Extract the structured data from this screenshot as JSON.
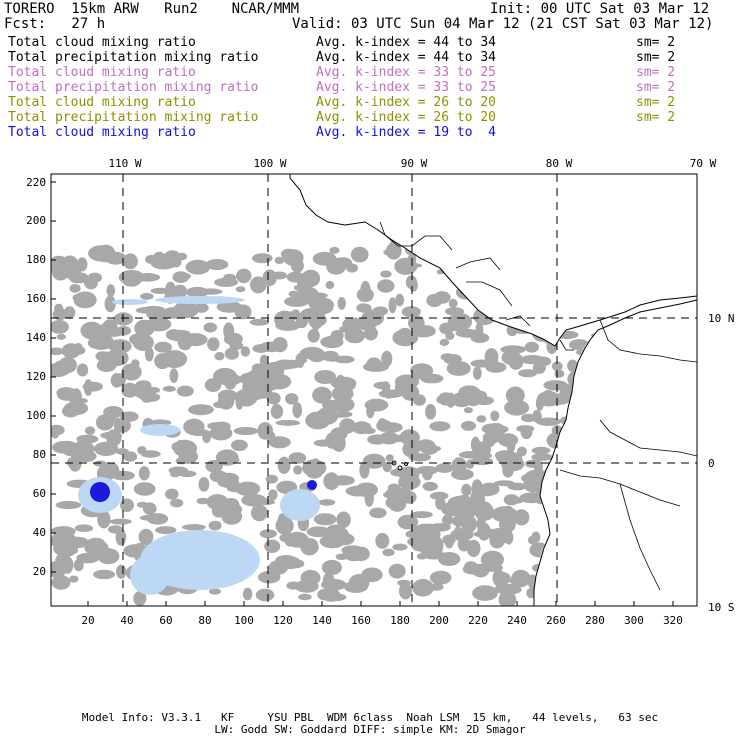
{
  "header": {
    "model": "TORERO  15km ARW   Run2    NCAR/MMM",
    "init": "Init: 00 UTC Sat 03 Mar 12",
    "fcst": "Fcst:   27 h",
    "valid": "Valid: 03 UTC Sun 04 Mar 12 (21 CST Sat 03 Mar 12)"
  },
  "legend": [
    {
      "field": "Total cloud mixing ratio",
      "kindex": "Avg. k-index = 44 to 34",
      "sm": "sm= 2",
      "color": "#000000"
    },
    {
      "field": "Total precipitation mixing ratio",
      "kindex": "Avg. k-index = 44 to 34",
      "sm": "sm= 2",
      "color": "#000000"
    },
    {
      "field": "Total cloud mixing ratio",
      "kindex": "Avg. k-index = 33 to 25",
      "sm": "sm= 2",
      "color": "#c070c0"
    },
    {
      "field": "Total precipitation mixing ratio",
      "kindex": "Avg. k-index = 33 to 25",
      "sm": "sm= 2",
      "color": "#c070c0"
    },
    {
      "field": "Total cloud mixing ratio",
      "kindex": "Avg. k-index = 26 to 20",
      "sm": "sm= 2",
      "color": "#909000"
    },
    {
      "field": "Total precipitation mixing ratio",
      "kindex": "Avg. k-index = 26 to 20",
      "sm": "sm= 2",
      "color": "#909000"
    },
    {
      "field": "Total cloud mixing ratio",
      "kindex": "Avg. k-index = 19 to  4",
      "sm": "",
      "color": "#1010e0"
    }
  ],
  "map": {
    "lon_labels": [
      "110 W",
      "100 W",
      "90 W",
      "80 W",
      "70 W"
    ],
    "lat_labels": [
      "10 N",
      "0",
      "10 S"
    ],
    "y_ticks": [
      "220",
      "200",
      "180",
      "160",
      "140",
      "120",
      "100",
      "80",
      "60",
      "40",
      "20"
    ],
    "x_ticks": [
      "20",
      "40",
      "60",
      "80",
      "100",
      "120",
      "140",
      "160",
      "180",
      "200",
      "220",
      "240",
      "260",
      "280",
      "300",
      "320"
    ],
    "colors": {
      "cloud_gray": "#a8a8a8",
      "purple": "#b070b0",
      "yellow": "#f0f070",
      "blue_light": "#bcd8f4",
      "blue_dark": "#1a1ad8",
      "coast": "#000000"
    }
  },
  "footer": {
    "line1": "Model Info: V3.3.1   KF     YSU PBL  WDM 6class  Noah LSM  15 km,   44 levels,   63 sec",
    "line2": "LW: Godd SW: Goddard DIFF: simple KM: 2D Smagor"
  }
}
